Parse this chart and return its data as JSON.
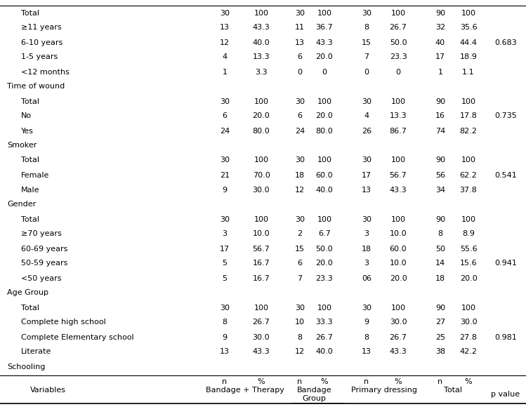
{
  "col_headers": {
    "variables": "Variables",
    "group_label": "Group",
    "bt_label": "Bandage + Therapy",
    "gb_label": "Bandage",
    "pd_label": "Primary dressing",
    "total_label": "Total",
    "pval_label": "p value"
  },
  "rows": [
    {
      "label": "Schooling",
      "level": 0,
      "bt_n": "",
      "bt_pct": "",
      "gb_n": "",
      "gb_pct": "",
      "pd_n": "",
      "pd_pct": "",
      "t_n": "",
      "t_pct": "",
      "pval": ""
    },
    {
      "label": "Literate",
      "level": 1,
      "bt_n": "13",
      "bt_pct": "43.3",
      "gb_n": "12",
      "gb_pct": "40.0",
      "pd_n": "13",
      "pd_pct": "43.3",
      "t_n": "38",
      "t_pct": "42.2",
      "pval": ""
    },
    {
      "label": "Complete Elementary school",
      "level": 1,
      "bt_n": "9",
      "bt_pct": "30.0",
      "gb_n": "8",
      "gb_pct": "26.7",
      "pd_n": "8",
      "pd_pct": "26.7",
      "t_n": "25",
      "t_pct": "27.8",
      "pval": "0.981"
    },
    {
      "label": "Complete high school",
      "level": 1,
      "bt_n": "8",
      "bt_pct": "26.7",
      "gb_n": "10",
      "gb_pct": "33.3",
      "pd_n": "9",
      "pd_pct": "30.0",
      "t_n": "27",
      "t_pct": "30.0",
      "pval": ""
    },
    {
      "label": "Total",
      "level": 1,
      "bt_n": "30",
      "bt_pct": "100",
      "gb_n": "30",
      "gb_pct": "100",
      "pd_n": "30",
      "pd_pct": "100",
      "t_n": "90",
      "t_pct": "100",
      "pval": ""
    },
    {
      "label": "Age Group",
      "level": 0,
      "bt_n": "",
      "bt_pct": "",
      "gb_n": "",
      "gb_pct": "",
      "pd_n": "",
      "pd_pct": "",
      "t_n": "",
      "t_pct": "",
      "pval": ""
    },
    {
      "label": "<50 years",
      "level": 1,
      "bt_n": "5",
      "bt_pct": "16.7",
      "gb_n": "7",
      "gb_pct": "23.3",
      "pd_n": "06",
      "pd_pct": "20.0",
      "t_n": "18",
      "t_pct": "20.0",
      "pval": ""
    },
    {
      "label": "50-59 years",
      "level": 1,
      "bt_n": "5",
      "bt_pct": "16.7",
      "gb_n": "6",
      "gb_pct": "20.0",
      "pd_n": "3",
      "pd_pct": "10.0",
      "t_n": "14",
      "t_pct": "15.6",
      "pval": "0.941"
    },
    {
      "label": "60-69 years",
      "level": 1,
      "bt_n": "17",
      "bt_pct": "56.7",
      "gb_n": "15",
      "gb_pct": "50.0",
      "pd_n": "18",
      "pd_pct": "60.0",
      "t_n": "50",
      "t_pct": "55.6",
      "pval": ""
    },
    {
      "label": "≥70 years",
      "level": 1,
      "bt_n": "3",
      "bt_pct": "10.0",
      "gb_n": "2",
      "gb_pct": "6.7",
      "pd_n": "3",
      "pd_pct": "10.0",
      "t_n": "8",
      "t_pct": "8.9",
      "pval": ""
    },
    {
      "label": "Total",
      "level": 1,
      "bt_n": "30",
      "bt_pct": "100",
      "gb_n": "30",
      "gb_pct": "100",
      "pd_n": "30",
      "pd_pct": "100",
      "t_n": "90",
      "t_pct": "100",
      "pval": ""
    },
    {
      "label": "Gender",
      "level": 0,
      "bt_n": "",
      "bt_pct": "",
      "gb_n": "",
      "gb_pct": "",
      "pd_n": "",
      "pd_pct": "",
      "t_n": "",
      "t_pct": "",
      "pval": ""
    },
    {
      "label": "Male",
      "level": 1,
      "bt_n": "9",
      "bt_pct": "30.0",
      "gb_n": "12",
      "gb_pct": "40.0",
      "pd_n": "13",
      "pd_pct": "43.3",
      "t_n": "34",
      "t_pct": "37.8",
      "pval": ""
    },
    {
      "label": "Female",
      "level": 1,
      "bt_n": "21",
      "bt_pct": "70.0",
      "gb_n": "18",
      "gb_pct": "60.0",
      "pd_n": "17",
      "pd_pct": "56.7",
      "t_n": "56",
      "t_pct": "62.2",
      "pval": "0.541"
    },
    {
      "label": "Total",
      "level": 1,
      "bt_n": "30",
      "bt_pct": "100",
      "gb_n": "30",
      "gb_pct": "100",
      "pd_n": "30",
      "pd_pct": "100",
      "t_n": "90",
      "t_pct": "100",
      "pval": ""
    },
    {
      "label": "Smoker",
      "level": 0,
      "bt_n": "",
      "bt_pct": "",
      "gb_n": "",
      "gb_pct": "",
      "pd_n": "",
      "pd_pct": "",
      "t_n": "",
      "t_pct": "",
      "pval": ""
    },
    {
      "label": "Yes",
      "level": 1,
      "bt_n": "24",
      "bt_pct": "80.0",
      "gb_n": "24",
      "gb_pct": "80.0",
      "pd_n": "26",
      "pd_pct": "86.7",
      "t_n": "74",
      "t_pct": "82.2",
      "pval": ""
    },
    {
      "label": "No",
      "level": 1,
      "bt_n": "6",
      "bt_pct": "20.0",
      "gb_n": "6",
      "gb_pct": "20.0",
      "pd_n": "4",
      "pd_pct": "13.3",
      "t_n": "16",
      "t_pct": "17.8",
      "pval": "0.735"
    },
    {
      "label": "Total",
      "level": 1,
      "bt_n": "30",
      "bt_pct": "100",
      "gb_n": "30",
      "gb_pct": "100",
      "pd_n": "30",
      "pd_pct": "100",
      "t_n": "90",
      "t_pct": "100",
      "pval": ""
    },
    {
      "label": "Time of wound",
      "level": 0,
      "bt_n": "",
      "bt_pct": "",
      "gb_n": "",
      "gb_pct": "",
      "pd_n": "",
      "pd_pct": "",
      "t_n": "",
      "t_pct": "",
      "pval": ""
    },
    {
      "label": "<12 months",
      "level": 1,
      "bt_n": "1",
      "bt_pct": "3.3",
      "gb_n": "0",
      "gb_pct": "0",
      "pd_n": "0",
      "pd_pct": "0",
      "t_n": "1",
      "t_pct": "1.1",
      "pval": ""
    },
    {
      "label": "1-5 years",
      "level": 1,
      "bt_n": "4",
      "bt_pct": "13.3",
      "gb_n": "6",
      "gb_pct": "20.0",
      "pd_n": "7",
      "pd_pct": "23.3",
      "t_n": "17",
      "t_pct": "18.9",
      "pval": ""
    },
    {
      "label": "6-10 years",
      "level": 1,
      "bt_n": "12",
      "bt_pct": "40.0",
      "gb_n": "13",
      "gb_pct": "43.3",
      "pd_n": "15",
      "pd_pct": "50.0",
      "t_n": "40",
      "t_pct": "44.4",
      "pval": "0.683"
    },
    {
      "label": "≥11 years",
      "level": 1,
      "bt_n": "13",
      "bt_pct": "43.3",
      "gb_n": "11",
      "gb_pct": "36.7",
      "pd_n": "8",
      "pd_pct": "26.7",
      "t_n": "32",
      "t_pct": "35.6",
      "pval": ""
    },
    {
      "label": "Total",
      "level": 1,
      "bt_n": "30",
      "bt_pct": "100",
      "gb_n": "30",
      "gb_pct": "100",
      "pd_n": "30",
      "pd_pct": "100",
      "t_n": "90",
      "t_pct": "100",
      "pval": ""
    }
  ],
  "font_size": 8.0,
  "bg_color": "#ffffff",
  "text_color": "#000000",
  "figw": 7.49,
  "figh": 5.9,
  "dpi": 100
}
